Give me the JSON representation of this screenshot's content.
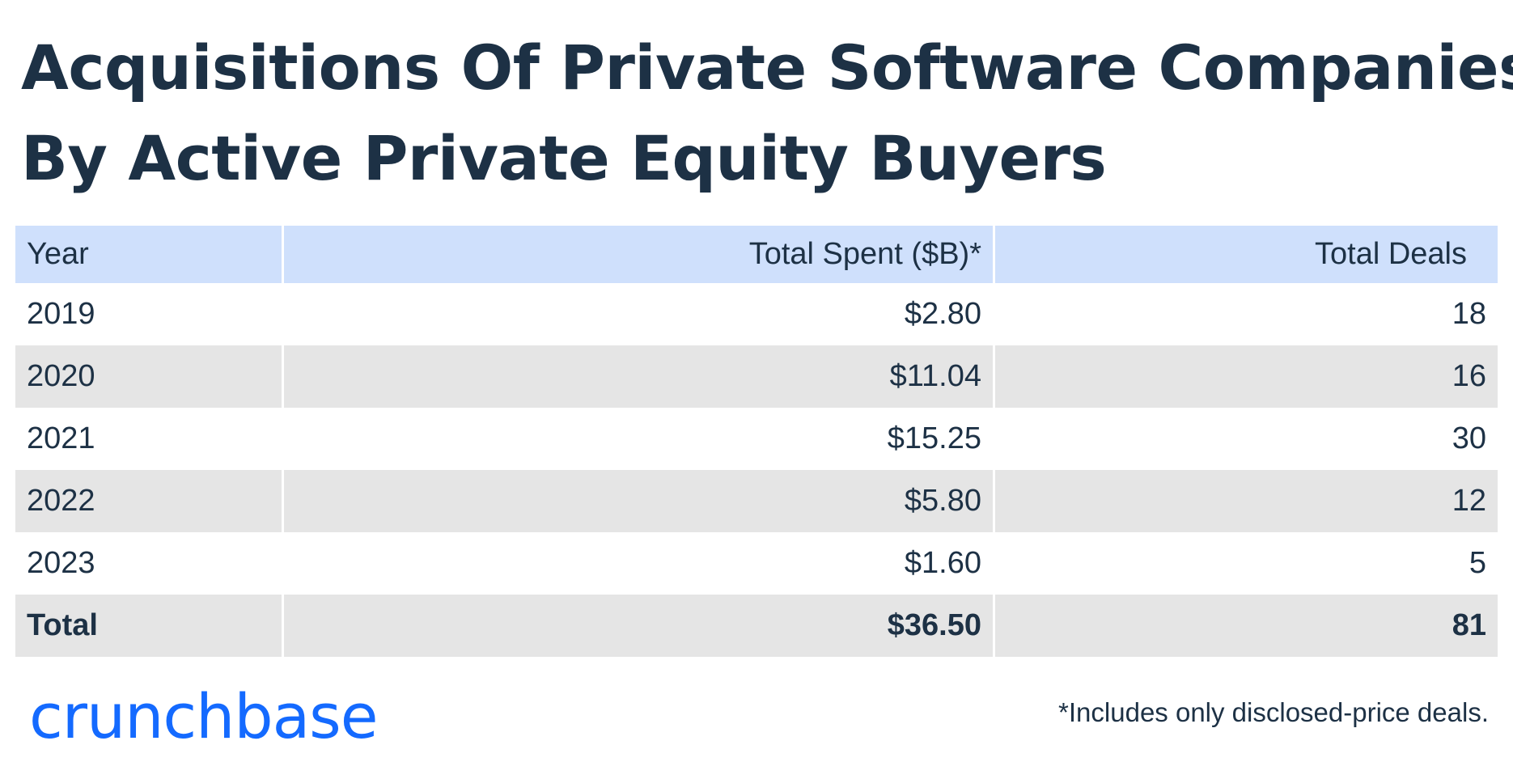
{
  "title_lines": [
    "Acquisitions Of Private Software Companies",
    "By Active Private Equity Buyers"
  ],
  "chart_data": {
    "type": "table",
    "title": "Acquisitions Of Private Software Companies By Active Private Equity Buyers",
    "columns": [
      "Year",
      "Total Spent ($B)*",
      "Total Deals"
    ],
    "rows": [
      {
        "year": "2019",
        "spent": "$2.80",
        "deals": "18"
      },
      {
        "year": "2020",
        "spent": "$11.04",
        "deals": "16"
      },
      {
        "year": "2021",
        "spent": "$15.25",
        "deals": "30"
      },
      {
        "year": "2022",
        "spent": "$5.80",
        "deals": "12"
      },
      {
        "year": "2023",
        "spent": "$1.60",
        "deals": "5"
      }
    ],
    "total": {
      "label": "Total",
      "spent": "$36.50",
      "deals": "81"
    },
    "header_color": "#cfe0fc",
    "stripe_color": "#e5e5e5"
  },
  "brand": {
    "logo_text": "crunchbase",
    "logo_color": "#146aff"
  },
  "footnote": "*Includes only disclosed-price deals."
}
